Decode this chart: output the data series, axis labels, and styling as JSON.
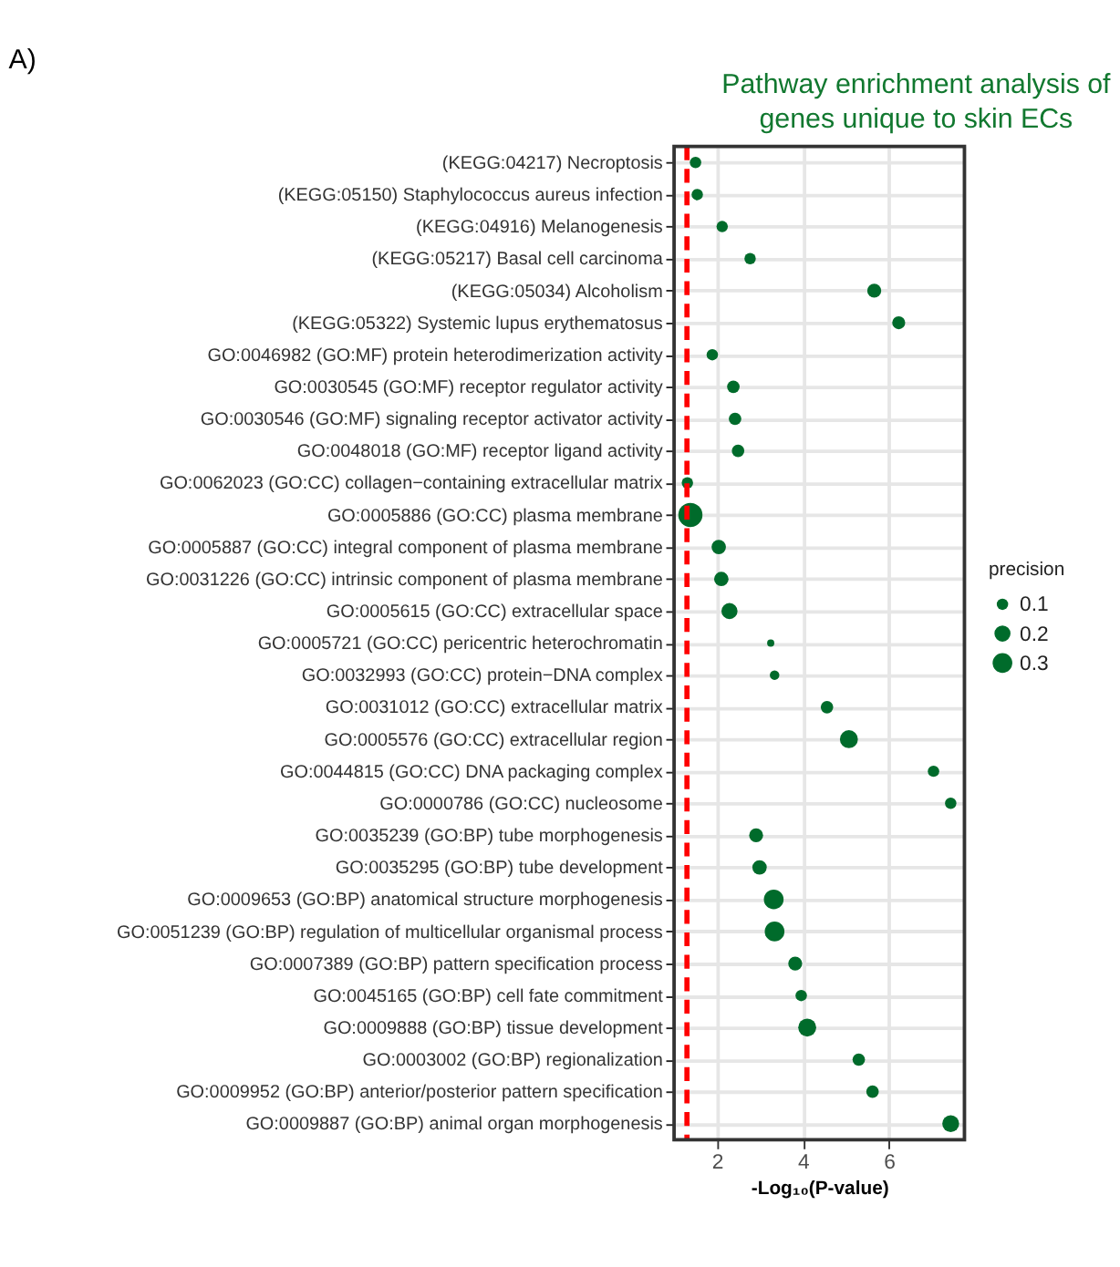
{
  "chart_data": {
    "type": "bubble",
    "orientation": "horizontal",
    "title": [
      "Pathway enrichment analysis of",
      "genes unique to skin ECs"
    ],
    "xlabel": "-Log₁₀(P-value)",
    "legend_title": "precision",
    "annotations": [
      "A)"
    ],
    "categories": [
      "(KEGG:04217) Necroptosis",
      "(KEGG:05150) Staphylococcus aureus infection",
      "(KEGG:04916) Melanogenesis",
      "(KEGG:05217) Basal cell carcinoma",
      "(KEGG:05034) Alcoholism",
      "(KEGG:05322) Systemic lupus erythematosus",
      "GO:0046982 (GO:MF) protein heterodimerization activity",
      "GO:0030545 (GO:MF) receptor regulator activity",
      "GO:0030546 (GO:MF) signaling receptor activator activity",
      "GO:0048018 (GO:MF) receptor ligand activity",
      "GO:0062023 (GO:CC) collagen−containing extracellular matrix",
      "GO:0005886 (GO:CC) plasma membrane",
      "GO:0005887 (GO:CC) integral component of plasma membrane",
      "GO:0031226 (GO:CC) intrinsic component of plasma membrane",
      "GO:0005615 (GO:CC) extracellular space",
      "GO:0005721 (GO:CC) pericentric heterochromatin",
      "GO:0032993 (GO:CC) protein−DNA complex",
      "GO:0031012 (GO:CC) extracellular matrix",
      "GO:0005576 (GO:CC) extracellular region",
      "GO:0044815 (GO:CC) DNA packaging complex",
      "GO:0000786 (GO:CC) nucleosome",
      "GO:0035239 (GO:BP) tube morphogenesis",
      "GO:0035295 (GO:BP) tube development",
      "GO:0009653 (GO:BP) anatomical structure morphogenesis",
      "GO:0051239 (GO:BP) regulation of multicellular organismal process",
      "GO:0007389 (GO:BP) pattern specification process",
      "GO:0045165 (GO:BP) cell fate commitment",
      "GO:0009888 (GO:BP) tissue development",
      "GO:0003002 (GO:BP) regionalization",
      "GO:0009952 (GO:BP) anterior/posterior pattern specification",
      "GO:0009887 (GO:BP) animal organ morphogenesis"
    ],
    "series": [
      {
        "color": "#006b2b",
        "values": [
          1.5,
          1.54,
          2.12,
          2.77,
          5.66,
          6.23,
          1.89,
          2.38,
          2.42,
          2.49,
          1.31,
          1.38,
          2.04,
          2.1,
          2.29,
          3.25,
          3.34,
          4.56,
          5.07,
          7.04,
          7.44,
          2.91,
          2.99,
          3.32,
          3.34,
          3.82,
          3.96,
          4.1,
          5.3,
          5.62,
          7.44
        ],
        "sizes": [
          0.1,
          0.1,
          0.1,
          0.1,
          0.15,
          0.13,
          0.1,
          0.12,
          0.12,
          0.12,
          0.1,
          0.45,
          0.16,
          0.16,
          0.2,
          0.04,
          0.07,
          0.12,
          0.25,
          0.1,
          0.1,
          0.15,
          0.16,
          0.3,
          0.3,
          0.15,
          0.1,
          0.25,
          0.12,
          0.12,
          0.22
        ]
      }
    ],
    "size_legend": [
      0.1,
      0.2,
      0.3
    ],
    "xlim": [
      1.0,
      7.76
    ],
    "xticks": [
      2,
      4,
      6
    ],
    "grid": true,
    "marker": "circle",
    "ref_lines": [
      {
        "axis": "x",
        "value": 1.3,
        "color": "#ff0000",
        "line_style": "dashed"
      }
    ]
  }
}
